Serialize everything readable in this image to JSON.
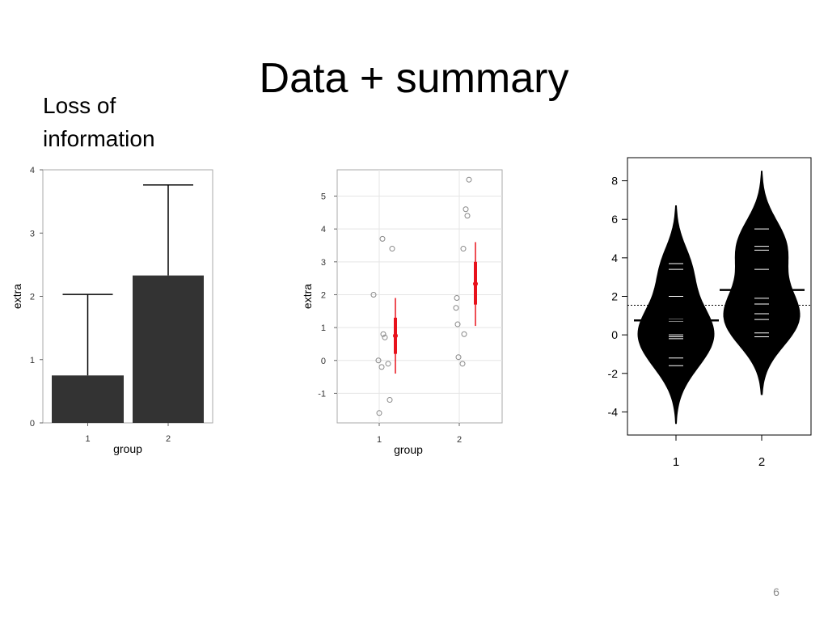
{
  "slide": {
    "title": "Data + summary",
    "side_label_line1": "Loss of",
    "side_label_line2": "information",
    "page_number": "6"
  },
  "chart_data": [
    {
      "type": "bar",
      "categories": [
        "1",
        "2"
      ],
      "values": [
        0.75,
        2.33
      ],
      "error_upper": [
        2.03,
        3.76
      ],
      "xlabel": "group",
      "ylabel": "extra",
      "ylim": [
        0,
        4
      ],
      "yticks": [
        0,
        1,
        2,
        3,
        4
      ],
      "colors": {
        "bar": "#333333",
        "error": "#000000",
        "panel": "#ffffff",
        "border": "#aaaaaa"
      }
    },
    {
      "type": "scatter",
      "categories": [
        "1",
        "2"
      ],
      "xlabel": "group",
      "ylabel": "extra",
      "ylim": [
        -1.9,
        5.8
      ],
      "yticks": [
        -1,
        0,
        1,
        2,
        3,
        4,
        5
      ],
      "grid": true,
      "series": [
        {
          "group": "1",
          "values": [
            0.7,
            -1.6,
            -0.2,
            -1.2,
            -0.1,
            3.4,
            3.7,
            0.8,
            0.0,
            2.0
          ]
        },
        {
          "group": "2",
          "values": [
            1.9,
            0.8,
            1.1,
            0.1,
            -0.1,
            4.4,
            5.5,
            1.6,
            4.6,
            3.4
          ]
        }
      ],
      "summary": [
        {
          "group": "1",
          "mean": 0.75,
          "inner": [
            0.2,
            1.3
          ],
          "outer": [
            -0.4,
            1.9
          ]
        },
        {
          "group": "2",
          "mean": 2.33,
          "inner": [
            1.7,
            3.0
          ],
          "outer": [
            1.05,
            3.6
          ]
        }
      ],
      "colors": {
        "points": "#888888",
        "summary": "#e8121c",
        "grid": "#e5e5e5",
        "border": "#aaaaaa"
      }
    },
    {
      "type": "beanplot",
      "categories": [
        "1",
        "2"
      ],
      "ylim": [
        -5.2,
        9.2
      ],
      "yticks": [
        -4,
        -2,
        0,
        2,
        4,
        6,
        8
      ],
      "overall_mean": 1.54,
      "groups": [
        {
          "name": "1",
          "values": [
            0.7,
            -1.6,
            -0.2,
            -1.2,
            -0.1,
            3.4,
            3.7,
            0.8,
            0.0,
            2.0
          ],
          "mean": 0.75,
          "range": [
            -4.6,
            6.7
          ]
        },
        {
          "name": "2",
          "values": [
            1.9,
            0.8,
            1.1,
            0.1,
            -0.1,
            4.4,
            5.5,
            1.6,
            4.6,
            3.4
          ],
          "mean": 2.33,
          "range": [
            -3.1,
            8.5
          ]
        }
      ],
      "colors": {
        "bean": "#000000",
        "lines": "#ffffff",
        "mean": "#000000",
        "frame": "#000000"
      }
    }
  ]
}
